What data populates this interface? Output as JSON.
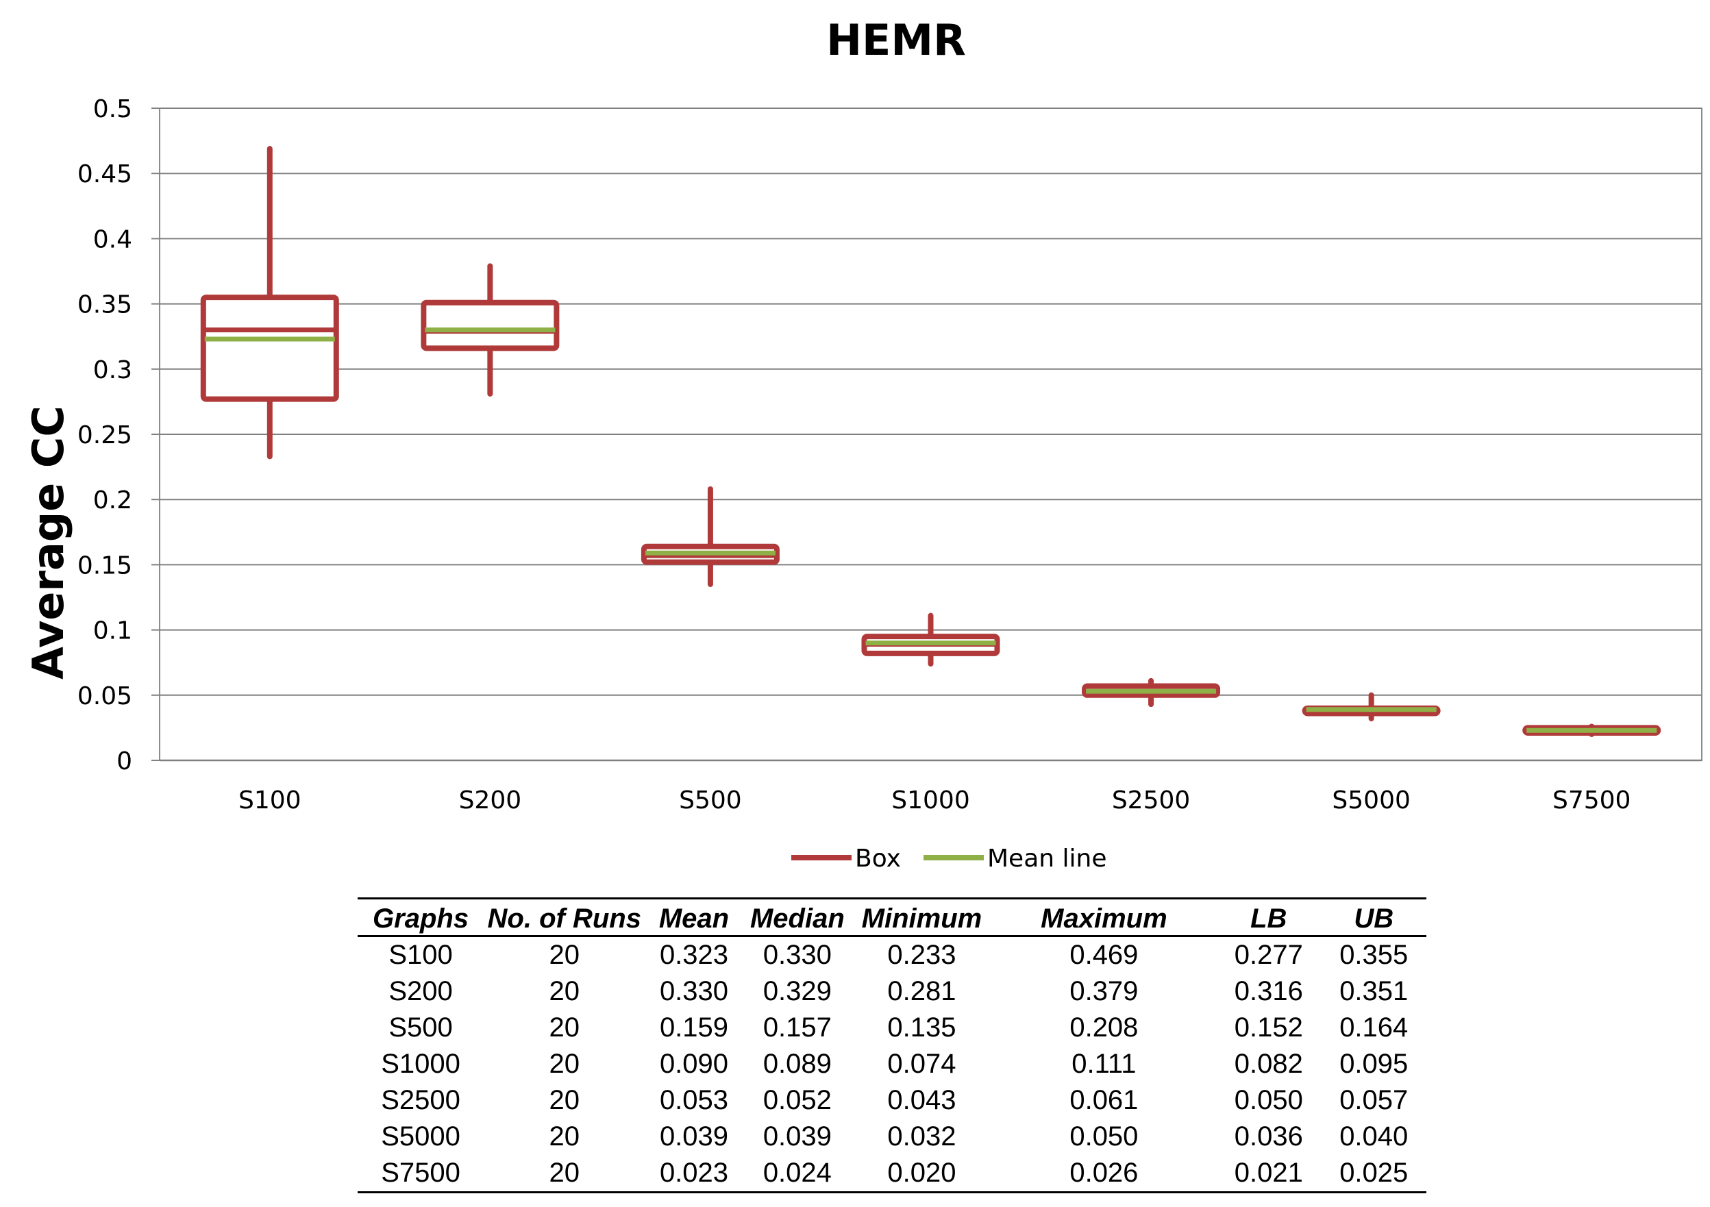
{
  "chart_data": {
    "type": "box",
    "title": "HEMR",
    "ylabel": "Average CC",
    "xlabel": "",
    "ylim": [
      0,
      0.5
    ],
    "yticks": [
      "0",
      "0.05",
      "0.1",
      "0.15",
      "0.2",
      "0.25",
      "0.3",
      "0.35",
      "0.4",
      "0.45",
      "0.5"
    ],
    "grid": true,
    "legend_position": "bottom",
    "categories": [
      "S100",
      "S200",
      "S500",
      "S1000",
      "S2500",
      "S5000",
      "S7500"
    ],
    "series": [
      {
        "name": "Box",
        "color": "#b03a3a",
        "lb": [
          0.277,
          0.316,
          0.152,
          0.082,
          0.05,
          0.036,
          0.021
        ],
        "median": [
          0.33,
          0.329,
          0.157,
          0.089,
          0.052,
          0.039,
          0.024
        ],
        "ub": [
          0.355,
          0.351,
          0.164,
          0.095,
          0.057,
          0.04,
          0.025
        ],
        "min": [
          0.233,
          0.281,
          0.135,
          0.074,
          0.043,
          0.032,
          0.02
        ],
        "max": [
          0.469,
          0.379,
          0.208,
          0.111,
          0.061,
          0.05,
          0.026
        ]
      },
      {
        "name": "Mean line",
        "color": "#8fb046",
        "values": [
          0.323,
          0.33,
          0.159,
          0.09,
          0.053,
          0.039,
          0.023
        ]
      }
    ],
    "table": {
      "columns": [
        "Graphs",
        "No. of Runs",
        "Mean",
        "Median",
        "Minimum",
        "Maximum",
        "LB",
        "UB"
      ],
      "rows": [
        [
          "S100",
          "20",
          "0.323",
          "0.330",
          "0.233",
          "0.469",
          "0.277",
          "0.355"
        ],
        [
          "S200",
          "20",
          "0.330",
          "0.329",
          "0.281",
          "0.379",
          "0.316",
          "0.351"
        ],
        [
          "S500",
          "20",
          "0.159",
          "0.157",
          "0.135",
          "0.208",
          "0.152",
          "0.164"
        ],
        [
          "S1000",
          "20",
          "0.090",
          "0.089",
          "0.074",
          "0.111",
          "0.082",
          "0.095"
        ],
        [
          "S2500",
          "20",
          "0.053",
          "0.052",
          "0.043",
          "0.061",
          "0.050",
          "0.057"
        ],
        [
          "S5000",
          "20",
          "0.039",
          "0.039",
          "0.032",
          "0.050",
          "0.036",
          "0.040"
        ],
        [
          "S7500",
          "20",
          "0.023",
          "0.024",
          "0.020",
          "0.026",
          "0.021",
          "0.025"
        ]
      ]
    }
  }
}
